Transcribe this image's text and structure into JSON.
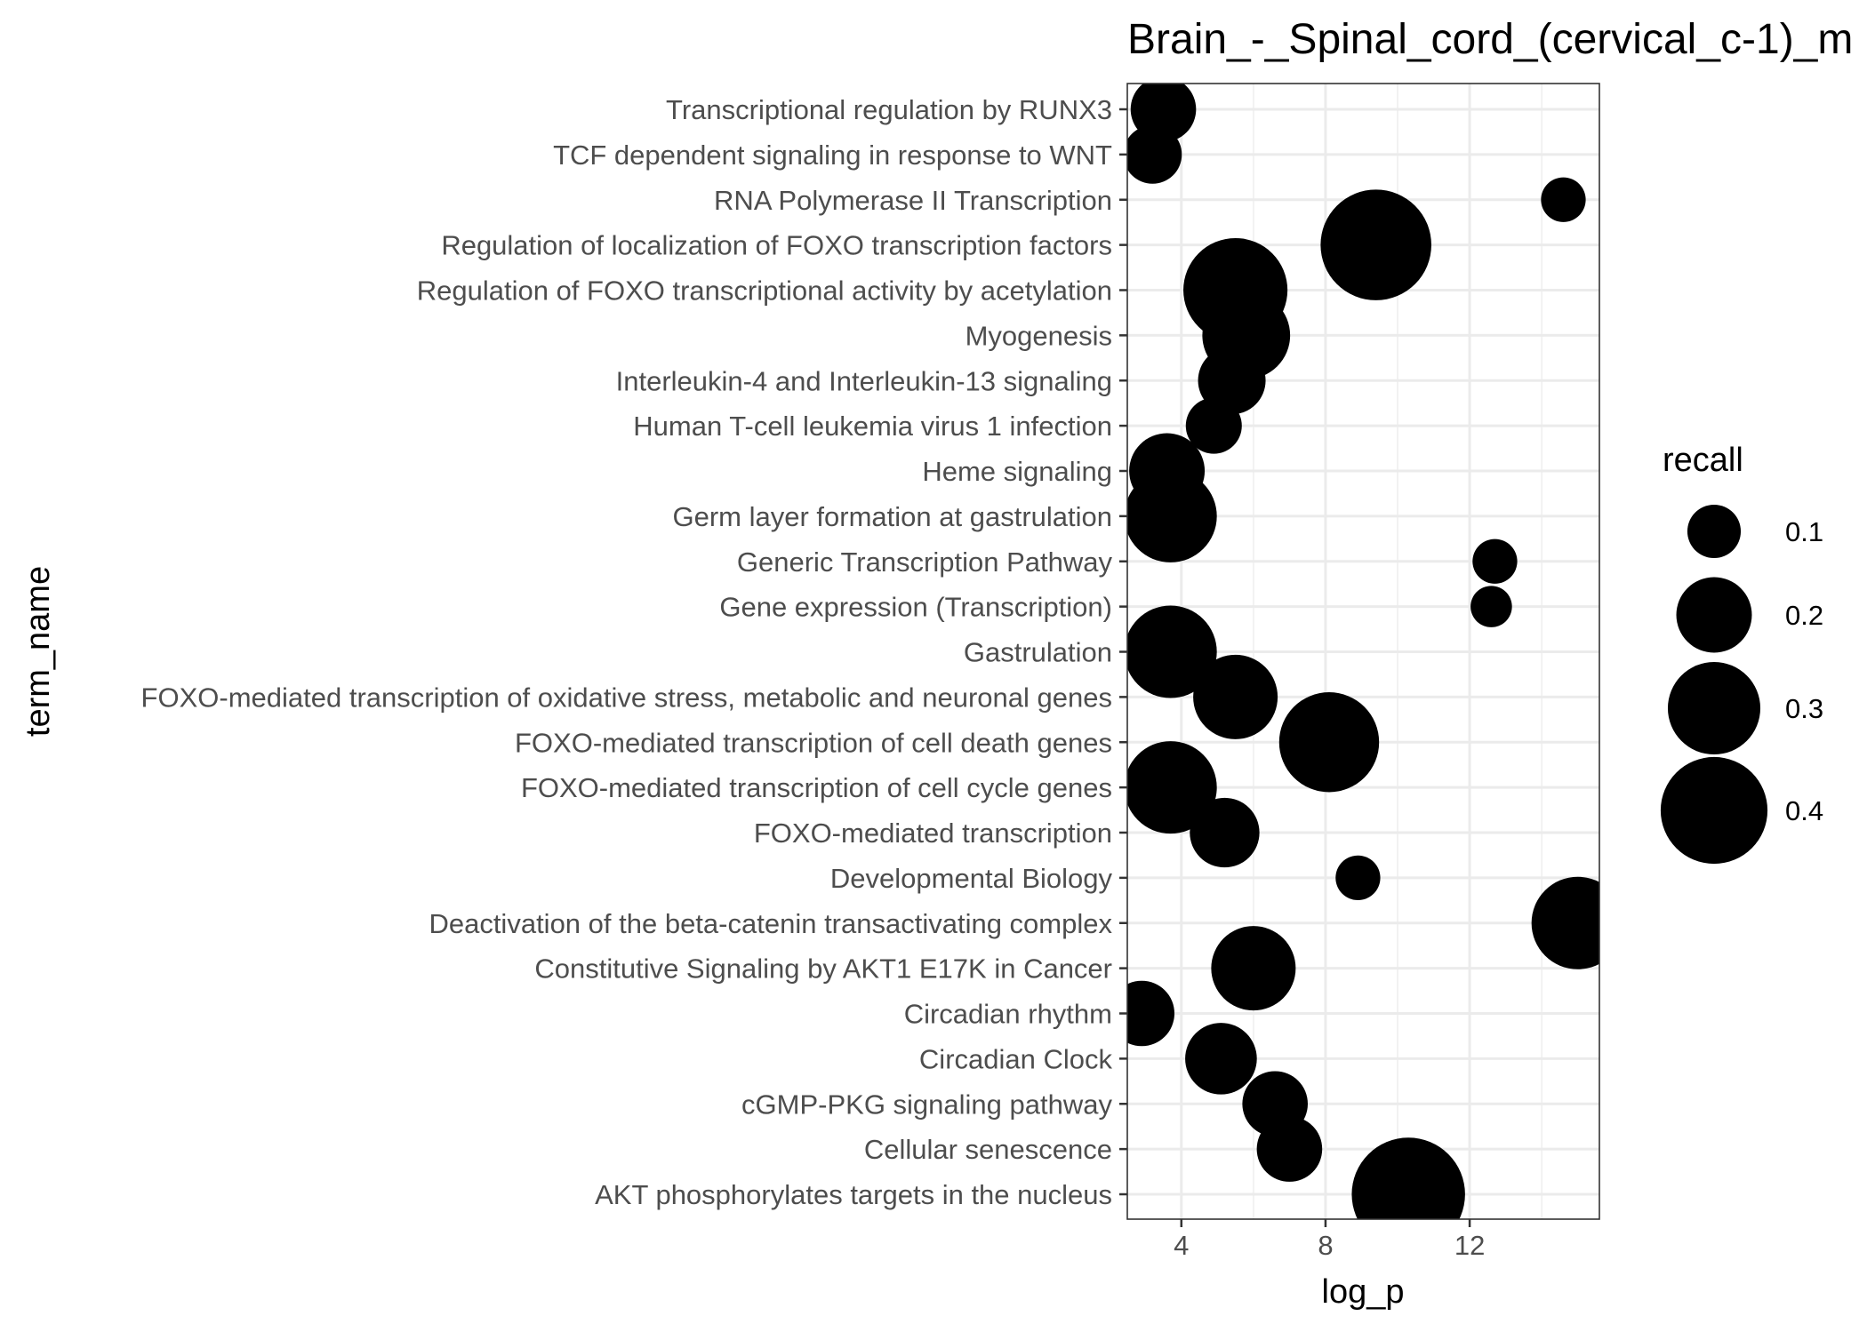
{
  "chart_data": {
    "type": "scatter",
    "title": "Brain_-_Spinal_cord_(cervical_c-1)_m",
    "xlabel": "log_p",
    "ylabel": "term_name",
    "xlim": [
      2.5,
      15.6
    ],
    "x_ticks": [
      4,
      8,
      12
    ],
    "grid": true,
    "legend": {
      "title": "recall",
      "position": "right",
      "entries": [
        {
          "label": "0.1",
          "value": 0.1
        },
        {
          "label": "0.2",
          "value": 0.2
        },
        {
          "label": "0.3",
          "value": 0.3
        },
        {
          "label": "0.4",
          "value": 0.4
        }
      ]
    },
    "categories": [
      "Transcriptional regulation by RUNX3",
      "TCF dependent signaling in response to WNT",
      "RNA Polymerase II Transcription",
      "Regulation of localization of FOXO transcription factors",
      "Regulation of FOXO transcriptional activity by acetylation",
      "Myogenesis",
      "Interleukin-4 and Interleukin-13 signaling",
      "Human T-cell leukemia virus 1 infection",
      "Heme signaling",
      "Germ layer formation at gastrulation",
      "Generic Transcription Pathway",
      "Gene expression (Transcription)",
      "Gastrulation",
      "FOXO-mediated transcription of oxidative stress, metabolic and neuronal genes",
      "FOXO-mediated transcription of cell death genes",
      "FOXO-mediated transcription of cell cycle genes",
      "FOXO-mediated transcription",
      "Developmental Biology",
      "Deactivation of the beta-catenin transactivating complex",
      "Constitutive Signaling by AKT1 E17K in Cancer",
      "Circadian rhythm",
      "Circadian Clock",
      "cGMP-PKG signaling pathway",
      "Cellular senescence",
      "AKT phosphorylates targets in the nucleus"
    ],
    "points": [
      {
        "term": "Transcriptional regulation by RUNX3",
        "log_p": 3.5,
        "recall": 0.15
      },
      {
        "term": "TCF dependent signaling in response to WNT",
        "log_p": 3.2,
        "recall": 0.12
      },
      {
        "term": "RNA Polymerase II Transcription",
        "log_p": 14.6,
        "recall": 0.07
      },
      {
        "term": "Regulation of localization of FOXO transcription factors",
        "log_p": 9.4,
        "recall": 0.43
      },
      {
        "term": "Regulation of FOXO transcriptional activity by acetylation",
        "log_p": 5.5,
        "recall": 0.38
      },
      {
        "term": "Myogenesis",
        "log_p": 5.8,
        "recall": 0.27
      },
      {
        "term": "Interleukin-4 and Interleukin-13 signaling",
        "log_p": 5.4,
        "recall": 0.16
      },
      {
        "term": "Human T-cell leukemia virus 1 infection",
        "log_p": 4.9,
        "recall": 0.11
      },
      {
        "term": "Heme signaling",
        "log_p": 3.6,
        "recall": 0.2
      },
      {
        "term": "Germ layer formation at gastrulation",
        "log_p": 3.7,
        "recall": 0.3
      },
      {
        "term": "Generic Transcription Pathway",
        "log_p": 12.7,
        "recall": 0.07
      },
      {
        "term": "Gene expression (Transcription)",
        "log_p": 12.6,
        "recall": 0.06
      },
      {
        "term": "Gastrulation",
        "log_p": 3.7,
        "recall": 0.3
      },
      {
        "term": "FOXO-mediated transcription of oxidative stress, metabolic and neuronal genes",
        "log_p": 5.5,
        "recall": 0.25
      },
      {
        "term": "FOXO-mediated transcription of cell death genes",
        "log_p": 8.1,
        "recall": 0.35
      },
      {
        "term": "FOXO-mediated transcription of cell cycle genes",
        "log_p": 3.7,
        "recall": 0.3
      },
      {
        "term": "FOXO-mediated transcription",
        "log_p": 5.2,
        "recall": 0.17
      },
      {
        "term": "Developmental Biology",
        "log_p": 8.9,
        "recall": 0.07
      },
      {
        "term": "Deactivation of the beta-catenin transactivating complex",
        "log_p": 15.0,
        "recall": 0.3
      },
      {
        "term": "Constitutive Signaling by AKT1 E17K in Cancer",
        "log_p": 6.0,
        "recall": 0.25
      },
      {
        "term": "Circadian rhythm",
        "log_p": 2.9,
        "recall": 0.15
      },
      {
        "term": "Circadian Clock",
        "log_p": 5.1,
        "recall": 0.18
      },
      {
        "term": "cGMP-PKG signaling pathway",
        "log_p": 6.6,
        "recall": 0.15
      },
      {
        "term": "Cellular senescence",
        "log_p": 7.0,
        "recall": 0.15
      },
      {
        "term": "AKT phosphorylates targets in the nucleus",
        "log_p": 10.3,
        "recall": 0.45
      }
    ]
  }
}
